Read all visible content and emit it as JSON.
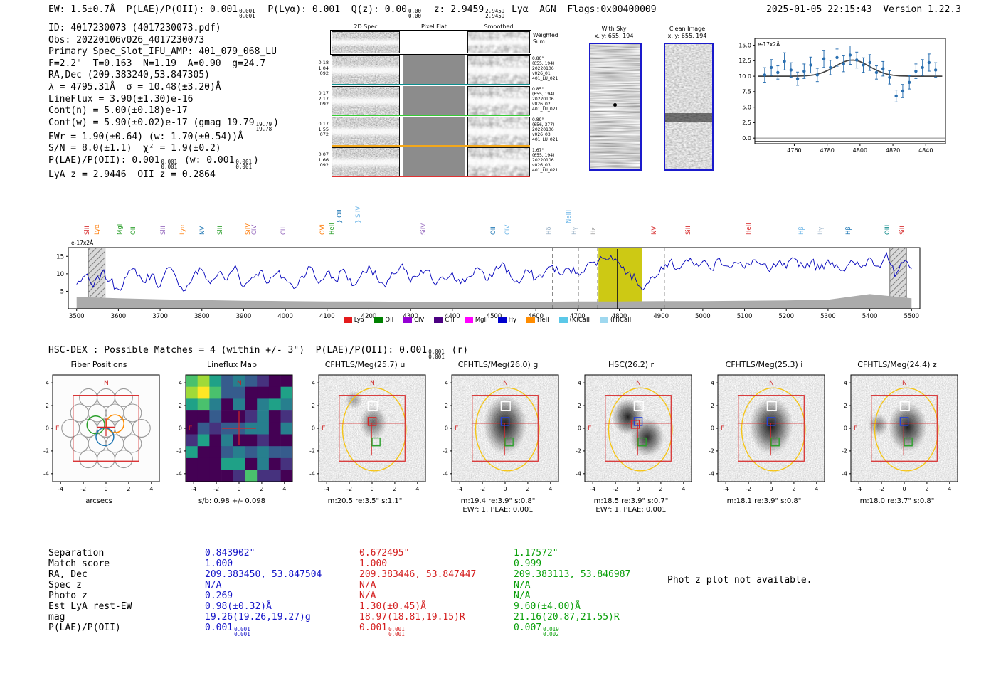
{
  "meta": {
    "datetime_version": "2025-01-05 22:15:43  Version 1.22.3"
  },
  "header": {
    "tokens": [
      {
        "t": "EW: 1.5±0.7Å  P(LAE)/P(OII): 0.001"
      },
      {
        "sup": "0.001",
        "sub": "0.001"
      },
      {
        "t": "  P(Lyα): 0.001  Q(z): 0.00"
      },
      {
        "sup": "0.00",
        "sub": "0.00"
      },
      {
        "t": "  z: 2.9459"
      },
      {
        "sup": "2.9459",
        "sub": "2.9459"
      },
      {
        "t": " Lyα  AGN  Flags:0x00400009"
      }
    ]
  },
  "info": {
    "lines": [
      [
        {
          "t": "ID: 4017230073 (4017230073.pdf)"
        }
      ],
      [
        {
          "t": "Obs: 20220106v026_4017230073"
        }
      ],
      [
        {
          "t": "Primary Spec_Slot_IFU_AMP: 401_079_068_LU"
        }
      ],
      [
        {
          "t": "F=2.2\"  T=0.163  N=1.19  A=0.90  g=24.7"
        }
      ],
      [
        {
          "t": "RA,Dec (209.383240,53.847305)"
        }
      ],
      [
        {
          "t": "λ = 4795.31Å  σ = 10.48(±3.20)Å"
        }
      ],
      [
        {
          "t": "LineFlux = 3.90(±1.30)e-16"
        }
      ],
      [
        {
          "t": "Cont(n) = 5.00(±0.18)e-17"
        }
      ],
      [
        {
          "t": "Cont(w) = 5.90(±0.02)e-17 (gmag 19.79"
        },
        {
          "sup": "19.79",
          "sub": "19.78"
        },
        {
          "t": ")"
        }
      ],
      [
        {
          "t": "EWr = 1.90(±0.64) (w: 1.70(±0.54))Å"
        }
      ],
      [
        {
          "t": "S/N = 8.0(±1.1)  χ² = 1.9(±0.2)"
        }
      ],
      [
        {
          "t": "P(LAE)/P(OII): 0.001"
        },
        {
          "sup": "0.001",
          "sub": "0.001"
        },
        {
          "t": " (w: 0.001"
        },
        {
          "sup": "0.001",
          "sub": "0.001"
        },
        {
          "t": ")"
        }
      ],
      [
        {
          "t": "LyA z = 2.9446  OII z = 0.2864"
        }
      ]
    ]
  },
  "spec2d": {
    "col_headers": [
      "2D Spec",
      "Pixel Flat",
      "Smoothed"
    ],
    "weighted_label": "Weighted Sum",
    "rows": [
      {
        "left": [
          "0.18",
          "1.04",
          "092"
        ],
        "right": [
          "0.80°",
          "(655, 194)",
          "20220106",
          "v026_01",
          "401_LU_021"
        ],
        "color": "#0b8f8f"
      },
      {
        "left": [
          "0.17",
          "2.17",
          "092"
        ],
        "right": [
          "0.85°",
          "(655, 194)",
          "20220106",
          "v026_02",
          "401_LU_021"
        ],
        "color": "#35cc35"
      },
      {
        "left": [
          "0.17",
          "1.55",
          "072"
        ],
        "right": [
          "0.89°",
          "(656, 377)",
          "20220106",
          "v026_03",
          "401_LU_021"
        ],
        "color": "#f2a71b"
      },
      {
        "left": [
          "0.07",
          "1.66",
          "092"
        ],
        "right": [
          "1.67°",
          "(655, 194)",
          "20220106",
          "v026_03",
          "401_LU_021"
        ],
        "color": "#e03131"
      }
    ]
  },
  "sky_panels": [
    {
      "title": "With Sky",
      "coords": "x, y: 655, 194"
    },
    {
      "title": "Clean Image",
      "coords": "x, y: 655, 194"
    }
  ],
  "hscdex": {
    "tokens": [
      {
        "t": "HSC-DEX : Possible Matches = 4 (within +/- 3\")  P(LAE)/P(OII): 0.001"
      },
      {
        "sup": "0.001",
        "sub": "0.001"
      },
      {
        "t": " (r)"
      }
    ]
  },
  "photz_note": "Phot z plot not available.",
  "cutouts": {
    "xlabel": "arcsecs",
    "axis_ticks": [
      -4,
      -2,
      0,
      2,
      4
    ],
    "panels": [
      {
        "title": "Fiber Positions",
        "type": "fibers"
      },
      {
        "title": "Lineflux Map",
        "type": "lineflux",
        "caption": "s/b: 0.98 +/- 0.098"
      },
      {
        "title": "CFHTLS/Meg(25.7) u",
        "type": "image",
        "caption": "m:20.5 re:3.5\" s:1.1\""
      },
      {
        "title": "CFHTLS/Meg(26.0) g",
        "type": "image",
        "caption": "m:19.4 re:3.9\" s:0.8\"",
        "caption2": "EWr: 1. PLAE: 0.001"
      },
      {
        "title": "HSC(26.2) r",
        "type": "image",
        "caption": "m:18.5 re:3.9\" s:0.7\"",
        "caption2": "EWr: 1. PLAE: 0.001"
      },
      {
        "title": "CFHTLS/Meg(25.3) i",
        "type": "image",
        "caption": "m:18.1 re:3.9\" s:0.8\""
      },
      {
        "title": "CFHTLS/Meg(24.4) z",
        "type": "image",
        "caption": "m:18.0 re:3.7\" s:0.8\""
      }
    ]
  },
  "match_table": {
    "row_labels": [
      "Separation",
      "Match score",
      "RA, Dec",
      "Spec z",
      "Photo z",
      "Est LyA rest-EW",
      "mag",
      "P(LAE)/P(OII)"
    ],
    "columns": [
      {
        "color": "#1414c8",
        "cells": [
          [
            {
              "t": "0.843902\""
            }
          ],
          [
            {
              "t": "1.000"
            }
          ],
          [
            {
              "t": "209.383450, 53.847504"
            }
          ],
          [
            {
              "t": "N/A"
            }
          ],
          [
            {
              "t": "0.269"
            }
          ],
          [
            {
              "t": "0.98(±0.32)Å"
            }
          ],
          [
            {
              "t": "19.26(19.26,19.27)g"
            }
          ],
          [
            {
              "t": "0.001"
            },
            {
              "sup": "0.001",
              "sub": "0.001"
            }
          ]
        ]
      },
      {
        "color": "#d42020",
        "cells": [
          [
            {
              "t": "0.672495\""
            }
          ],
          [
            {
              "t": "1.000"
            }
          ],
          [
            {
              "t": "209.383446, 53.847447"
            }
          ],
          [
            {
              "t": "N/A"
            }
          ],
          [
            {
              "t": "N/A"
            }
          ],
          [
            {
              "t": "1.30(±0.45)Å"
            }
          ],
          [
            {
              "t": "18.97(18.81,19.15)R"
            }
          ],
          [
            {
              "t": "0.001"
            },
            {
              "sup": "0.001",
              "sub": "0.001"
            }
          ]
        ]
      },
      {
        "color": "#0aa00a",
        "cells": [
          [
            {
              "t": "1.17572\""
            }
          ],
          [
            {
              "t": "0.999"
            }
          ],
          [
            {
              "t": "209.383113, 53.846987"
            }
          ],
          [
            {
              "t": "N/A"
            }
          ],
          [
            {
              "t": "N/A"
            }
          ],
          [
            {
              "t": "9.60(±4.00)Å"
            }
          ],
          [
            {
              "t": "21.16(20.87,21.55)R"
            }
          ],
          [
            {
              "t": "0.007"
            },
            {
              "sup": "0.019",
              "sub": "0.002"
            }
          ]
        ]
      }
    ]
  },
  "chart_data": [
    {
      "type": "scatter",
      "name": "line_fit_zoom",
      "annotation": "e-17x2Å",
      "xlim": [
        4736,
        4852
      ],
      "ylim": [
        -0.9,
        16.1
      ],
      "x_ticks": [
        4760,
        4780,
        4800,
        4820,
        4840
      ],
      "y_ticks": [
        0.0,
        2.5,
        5.0,
        7.5,
        10.0,
        12.5,
        15.0
      ],
      "points": [
        [
          4742,
          10.2,
          1.1
        ],
        [
          4746,
          11.4,
          1.2
        ],
        [
          4750,
          10.6,
          1.0
        ],
        [
          4754,
          12.4,
          1.3
        ],
        [
          4758,
          11.0,
          1.1
        ],
        [
          4762,
          9.6,
          1.0
        ],
        [
          4766,
          10.8,
          1.1
        ],
        [
          4770,
          11.8,
          1.2
        ],
        [
          4774,
          10.2,
          1.0
        ],
        [
          4778,
          12.8,
          1.3
        ],
        [
          4782,
          11.4,
          1.1
        ],
        [
          4786,
          13.0,
          1.3
        ],
        [
          4790,
          12.0,
          1.2
        ],
        [
          4794,
          13.4,
          1.4
        ],
        [
          4798,
          12.6,
          1.2
        ],
        [
          4802,
          11.8,
          1.1
        ],
        [
          4806,
          12.2,
          1.2
        ],
        [
          4810,
          10.6,
          1.0
        ],
        [
          4814,
          11.2,
          1.1
        ],
        [
          4818,
          9.8,
          1.0
        ],
        [
          4822,
          6.8,
          0.9
        ],
        [
          4826,
          7.6,
          1.0
        ],
        [
          4830,
          9.0,
          1.0
        ],
        [
          4834,
          10.8,
          1.1
        ],
        [
          4838,
          11.4,
          1.2
        ],
        [
          4842,
          12.2,
          1.3
        ],
        [
          4846,
          11.0,
          1.1
        ]
      ],
      "fit": {
        "baseline": 10.0,
        "amplitude": 2.6,
        "center": 4795.31,
        "sigma": 10.48
      }
    },
    {
      "type": "line",
      "name": "full_spectrum",
      "annotation": "e-17x2Å",
      "xlim": [
        3480,
        5520
      ],
      "ylim": [
        0,
        17.5
      ],
      "x_ticks": [
        3500,
        3600,
        3700,
        3800,
        3900,
        4000,
        4100,
        4200,
        4300,
        4400,
        4500,
        4600,
        4700,
        4800,
        4900,
        5000,
        5100,
        5200,
        5300,
        5400,
        5500
      ],
      "y_ticks": [
        5,
        10,
        15
      ],
      "wave_start": 3500,
      "wave_step": 20,
      "flux": [
        7.0,
        9.5,
        6.2,
        10.5,
        8.0,
        5.6,
        9.2,
        11.4,
        7.6,
        10.0,
        6.4,
        11.8,
        8.4,
        5.2,
        9.6,
        11.2,
        7.2,
        10.4,
        8.2,
        12.4,
        6.2,
        9.0,
        11.0,
        7.4,
        10.2,
        8.6,
        5.8,
        9.4,
        12.0,
        7.2,
        10.6,
        8.0,
        11.4,
        6.6,
        9.2,
        12.4,
        8.6,
        6.2,
        10.0,
        12.8,
        7.6,
        9.6,
        11.0,
        6.8,
        8.6,
        10.4,
        7.2,
        9.2,
        11.8,
        8.2,
        10.6,
        13.2,
        9.2,
        7.2,
        11.0,
        8.6,
        10.2,
        12.4,
        9.6,
        11.4,
        10.2,
        12.0,
        13.4,
        14.4,
        15.2,
        13.0,
        10.2,
        8.2,
        5.8,
        9.2,
        12.0,
        13.4,
        11.6,
        14.0,
        12.4,
        13.6,
        11.2,
        14.4,
        12.2,
        13.2,
        11.6,
        14.0,
        12.6,
        10.6,
        13.2,
        11.6,
        14.4,
        12.2,
        13.6,
        11.2,
        14.0,
        12.6,
        10.8,
        13.4,
        11.8,
        14.6,
        12.2,
        16.0,
        9.2,
        13.2,
        11.4
      ],
      "noise_step": 100,
      "noise": [
        3.4,
        3.0,
        2.7,
        2.5,
        2.3,
        2.2,
        2.1,
        2.1,
        2.0,
        2.0,
        2.0,
        2.0,
        2.1,
        2.1,
        2.2,
        2.2,
        2.3,
        2.4,
        2.6,
        4.2,
        3.0
      ],
      "highlight_band": [
        4750,
        4855
      ],
      "highlight_color": "#c9c400",
      "detection_wave": 4795.31,
      "dashed_lines": [
        4640,
        4702,
        4748,
        4908
      ],
      "hatch_bands": [
        [
          3528,
          3568
        ],
        [
          5448,
          5488
        ]
      ],
      "line_markers": [
        {
          "label": "SiII",
          "wave": 3535,
          "color": "#d62728",
          "raised": 0
        },
        {
          "label": "Lyα",
          "wave": 3558,
          "color": "#ff7f0e",
          "raised": 0
        },
        {
          "label": "MgII",
          "wave": 3612,
          "color": "#2ca02c",
          "raised": 0
        },
        {
          "label": "OII",
          "wave": 3645,
          "color": "#2ca02c",
          "raised": 0
        },
        {
          "label": "SiII",
          "wave": 3716,
          "color": "#9467bd",
          "raised": 0
        },
        {
          "label": "Lyα",
          "wave": 3762,
          "color": "#ff7f0e",
          "raised": 0
        },
        {
          "label": "NV",
          "wave": 3811,
          "color": "#1f77b4",
          "raised": 0
        },
        {
          "label": "SiII",
          "wave": 3854,
          "color": "#2ca02c",
          "raised": 0
        },
        {
          "label": "SiIV",
          "wave": 3919,
          "color": "#ff7f0e",
          "raised": 0
        },
        {
          "label": "CIV",
          "wave": 3935,
          "color": "#9467bd",
          "raised": 0
        },
        {
          "label": "CII",
          "wave": 4005,
          "color": "#9467bd",
          "raised": 0
        },
        {
          "label": "OVI",
          "wave": 4098,
          "color": "#ff7f0e",
          "raised": 0
        },
        {
          "label": "HeII",
          "wave": 4120,
          "color": "#2ca02c",
          "raised": 0
        },
        {
          "label": "} OII",
          "wave": 4140,
          "color": "#1f77b4",
          "raised": 1
        },
        {
          "label": "} SiIV",
          "wave": 4183,
          "color": "#6fb7e8",
          "raised": 1
        },
        {
          "label": "SiIV",
          "wave": 4340,
          "color": "#9467bd",
          "raised": 0
        },
        {
          "label": "OII",
          "wave": 4508,
          "color": "#1f77b4",
          "raised": 0
        },
        {
          "label": "CIV",
          "wave": 4542,
          "color": "#6fb7e8",
          "raised": 0
        },
        {
          "label": "Hδ",
          "wave": 4640,
          "color": "#9db4c8",
          "raised": 0
        },
        {
          "label": "NeIII",
          "wave": 4688,
          "color": "#6fb7e8",
          "raised": 1
        },
        {
          "label": "Hγ",
          "wave": 4702,
          "color": "#9db4c8",
          "raised": 0
        },
        {
          "label": "Hε",
          "wave": 4748,
          "color": "#999999",
          "raised": 0
        },
        {
          "label": "NV",
          "wave": 4893,
          "color": "#d62728",
          "raised": 0
        },
        {
          "label": "SiII",
          "wave": 4975,
          "color": "#d62728",
          "raised": 0
        },
        {
          "label": "HeII",
          "wave": 5120,
          "color": "#d62728",
          "raised": 0
        },
        {
          "label": "Hβ",
          "wave": 5245,
          "color": "#6fb7e8",
          "raised": 0
        },
        {
          "label": "Hγ",
          "wave": 5292,
          "color": "#9db4c8",
          "raised": 0
        },
        {
          "label": "Hβ",
          "wave": 5358,
          "color": "#1f77b4",
          "raised": 0
        },
        {
          "label": "OIII",
          "wave": 5452,
          "color": "#0e8a8a",
          "raised": 0
        },
        {
          "label": "SiII",
          "wave": 5487,
          "color": "#d62728",
          "raised": 0
        }
      ],
      "legend": [
        {
          "label": "Lyα",
          "color": "#e41a1c"
        },
        {
          "label": "OII",
          "color": "#008000"
        },
        {
          "label": "CIV",
          "color": "#9400d3"
        },
        {
          "label": "CIII",
          "color": "#4b0082"
        },
        {
          "label": "MgII",
          "color": "#ff00ff"
        },
        {
          "label": "Hγ",
          "color": "#0000cd"
        },
        {
          "label": "HeII",
          "color": "#ff8c00"
        },
        {
          "label": "(K)CaII",
          "color": "#5bc8e8"
        },
        {
          "label": "(H)CaII",
          "color": "#9fd8ef"
        }
      ]
    }
  ]
}
